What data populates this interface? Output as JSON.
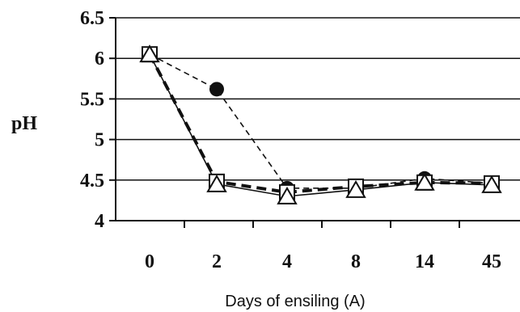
{
  "chart_data": {
    "type": "line",
    "xlabel": "Days of ensiling (A)",
    "ylabel": "pH",
    "categories": [
      "0",
      "2",
      "4",
      "8",
      "14",
      "45"
    ],
    "yticks": [
      "4",
      "4.5",
      "5",
      "5.5",
      "6",
      "6.5"
    ],
    "ylim": [
      4,
      6.5
    ],
    "grid": "horizontal",
    "series": [
      {
        "marker": "circle",
        "line_style": "thin-dashed",
        "values": [
          6.05,
          5.62,
          4.4,
          4.4,
          4.52,
          4.46
        ]
      },
      {
        "marker": "square",
        "line_style": "thick-dashed",
        "values": [
          6.05,
          4.48,
          4.35,
          4.42,
          4.47,
          4.46
        ]
      },
      {
        "marker": "triangle",
        "line_style": "solid",
        "values": [
          6.05,
          4.45,
          4.3,
          4.38,
          4.47,
          4.44
        ]
      }
    ]
  }
}
